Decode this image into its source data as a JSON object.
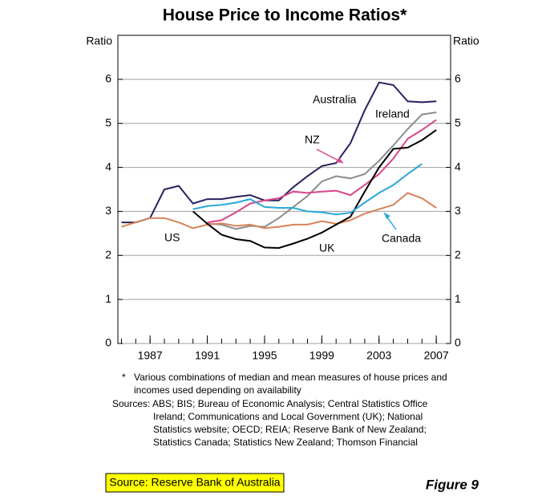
{
  "chart_data": {
    "type": "line",
    "title": "House Price to Income Ratios*",
    "ylabel": "Ratio",
    "y2label": "Ratio",
    "x": [
      1985,
      1986,
      1987,
      1988,
      1989,
      1990,
      1991,
      1992,
      1993,
      1994,
      1995,
      1996,
      1997,
      1998,
      1999,
      2000,
      2001,
      2002,
      2003,
      2004,
      2005,
      2006,
      2007
    ],
    "xlim": [
      1984.75,
      2008
    ],
    "xticks": [
      1987,
      1991,
      1995,
      1999,
      2003,
      2007
    ],
    "xminorticks": [
      1985,
      1986,
      1987,
      1988,
      1989,
      1990,
      1991,
      1992,
      1993,
      1994,
      1995,
      1996,
      1997,
      1998,
      1999,
      2000,
      2001,
      2002,
      2003,
      2004,
      2005,
      2006,
      2007
    ],
    "ylim": [
      0,
      7
    ],
    "yticks": [
      0,
      1,
      2,
      3,
      4,
      5,
      6
    ],
    "grid": true,
    "series": [
      {
        "name": "Australia",
        "color": "#27215e",
        "values": [
          2.75,
          2.75,
          2.85,
          3.5,
          3.58,
          3.18,
          3.28,
          3.28,
          3.33,
          3.37,
          3.25,
          3.25,
          3.55,
          3.8,
          4.03,
          4.1,
          4.55,
          5.3,
          5.93,
          5.87,
          5.5,
          5.48,
          5.5
        ]
      },
      {
        "name": "Ireland",
        "color": "#8c8c8c",
        "values": [
          null,
          null,
          null,
          null,
          null,
          null,
          2.72,
          2.7,
          2.6,
          2.67,
          2.65,
          2.85,
          3.1,
          3.35,
          3.68,
          3.8,
          3.75,
          3.85,
          4.15,
          4.5,
          4.87,
          5.2,
          5.25
        ]
      },
      {
        "name": "NZ",
        "color": "#d9468a",
        "values": [
          null,
          null,
          null,
          null,
          null,
          null,
          2.75,
          2.8,
          2.98,
          3.18,
          3.25,
          3.3,
          3.45,
          3.42,
          3.45,
          3.47,
          3.37,
          3.6,
          3.85,
          4.2,
          4.65,
          4.85,
          5.08
        ]
      },
      {
        "name": "US",
        "color": "#d8825a",
        "values": [
          2.65,
          2.75,
          2.85,
          2.85,
          2.75,
          2.62,
          2.7,
          2.73,
          2.67,
          2.7,
          2.62,
          2.65,
          2.7,
          2.7,
          2.78,
          2.72,
          2.8,
          2.95,
          3.05,
          3.15,
          3.42,
          3.3,
          3.08
        ]
      },
      {
        "name": "UK",
        "color": "#000000",
        "values": [
          null,
          null,
          null,
          null,
          null,
          3.0,
          2.72,
          2.47,
          2.37,
          2.33,
          2.18,
          2.17,
          2.27,
          2.38,
          2.52,
          2.7,
          2.88,
          3.45,
          4.0,
          4.42,
          4.45,
          4.62,
          4.85
        ]
      },
      {
        "name": "Canada",
        "color": "#29a8d8",
        "values": [
          null,
          null,
          null,
          null,
          null,
          3.05,
          3.12,
          3.15,
          3.2,
          3.28,
          3.1,
          3.08,
          3.08,
          3.0,
          2.98,
          2.93,
          2.97,
          3.2,
          3.42,
          3.6,
          3.85,
          4.08,
          null
        ]
      }
    ],
    "footnote_marker": "*",
    "footnote": [
      "Various combinations of median and mean measures of house prices and",
      "incomes used depending on availability"
    ],
    "sources": [
      "Sources: ABS; BIS; Bureau of Economic Analysis; Central Statistics Office",
      "Ireland; Communications and Local Government (UK); National",
      "Statistics website; OECD; REIA; Reserve Bank of New Zealand;",
      "Statistics Canada; Statistics New Zealand; Thomson Financial"
    ],
    "source_box": "Source: Reserve Bank of Australia",
    "figure_label": "Figure 9"
  }
}
